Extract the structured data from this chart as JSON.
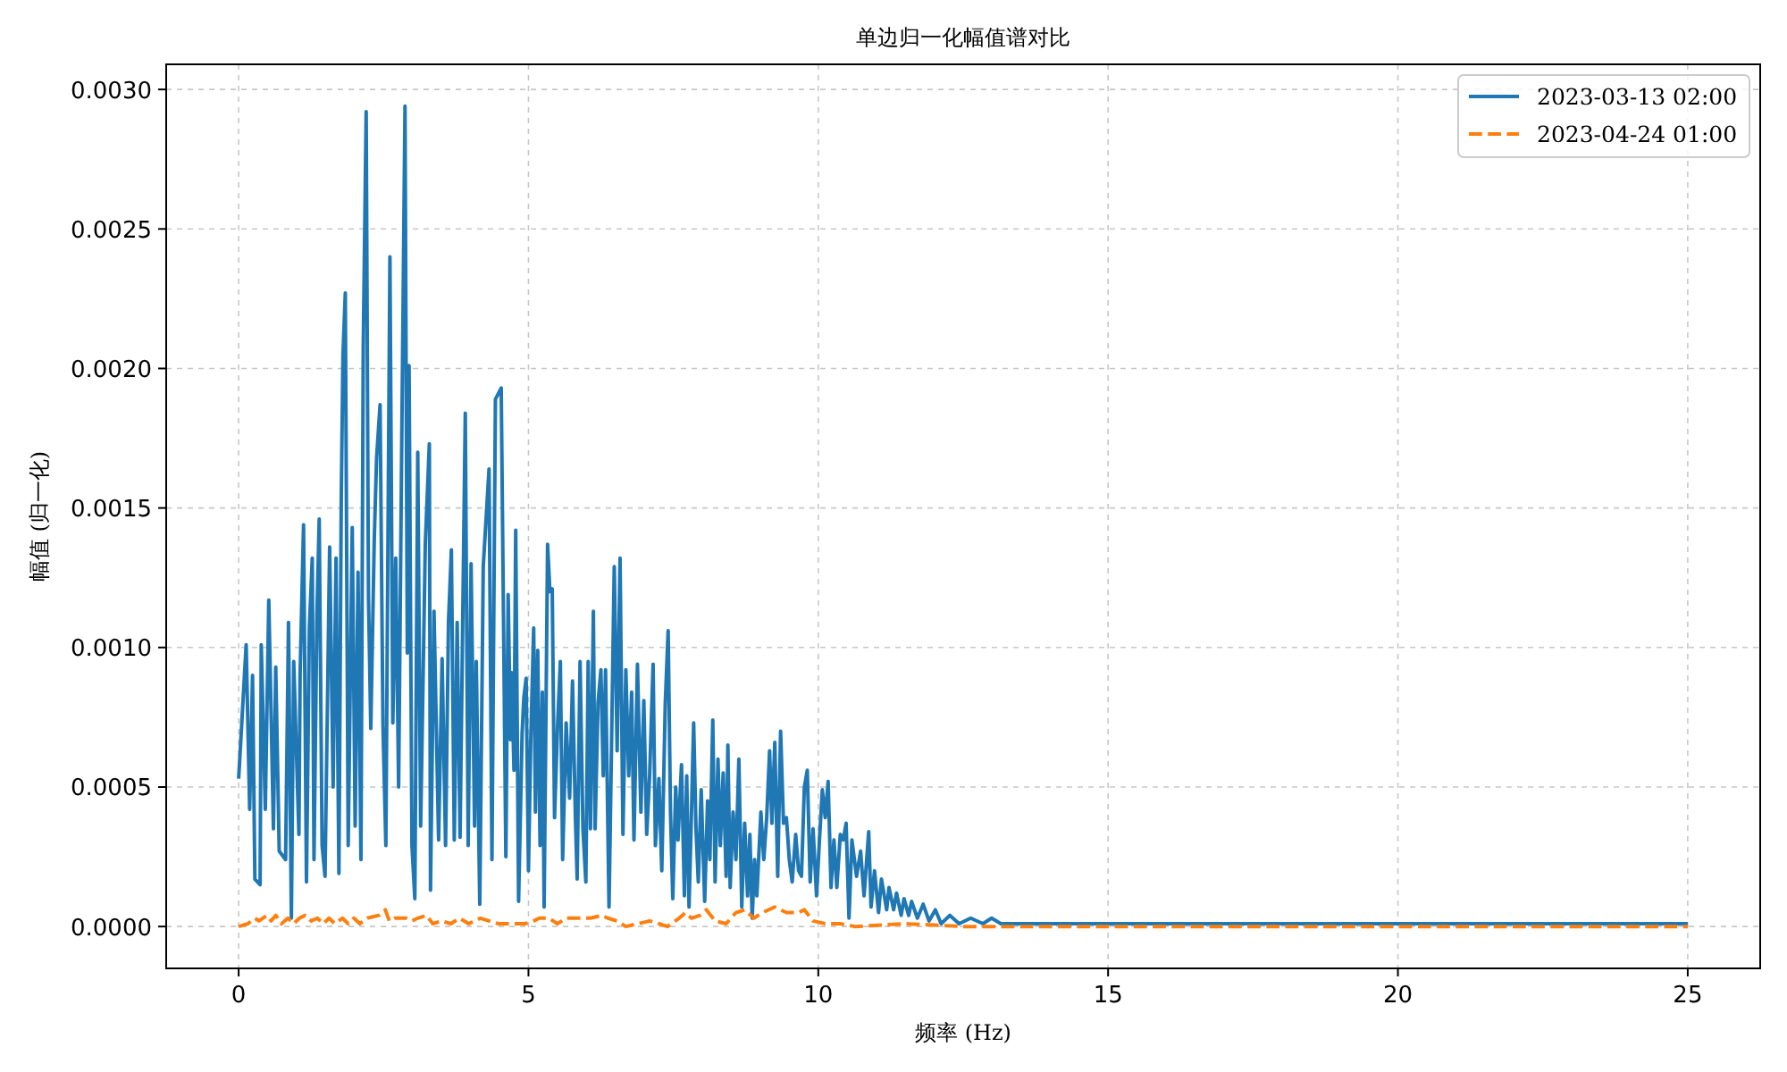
{
  "chart_data": {
    "type": "line",
    "title": "单边归一化幅值谱对比",
    "xlabel": "频率 (Hz)",
    "ylabel": "幅值 (归一化)",
    "xlim": [
      -1.25,
      26.25
    ],
    "ylim": [
      -0.00015,
      0.00309
    ],
    "xticks": [
      0,
      5,
      10,
      15,
      20,
      25
    ],
    "yticks": [
      {
        "value": 0,
        "label": "0.0000"
      },
      {
        "value": 0.0005,
        "label": "0.0005"
      },
      {
        "value": 0.001,
        "label": "0.0010"
      },
      {
        "value": 0.0015,
        "label": "0.0015"
      },
      {
        "value": 0.002,
        "label": "0.0020"
      },
      {
        "value": 0.0025,
        "label": "0.0025"
      },
      {
        "value": 0.003,
        "label": "0.0030"
      }
    ],
    "grid": true,
    "legend": "top right",
    "series": [
      {
        "name": "2023-03-13 02:00",
        "color": "#1f77b4",
        "line_style": "solid",
        "x": [
          0,
          0.13,
          0.19,
          0.24,
          0.28,
          0.37,
          0.39,
          0.46,
          0.52,
          0.6,
          0.64,
          0.7,
          0.81,
          0.86,
          0.91,
          0.95,
          1.04,
          1.06,
          1.12,
          1.17,
          1.22,
          1.27,
          1.3,
          1.35,
          1.39,
          1.44,
          1.49,
          1.57,
          1.63,
          1.68,
          1.73,
          1.77,
          1.8,
          1.84,
          1.89,
          1.96,
          2.01,
          2.06,
          2.11,
          2.15,
          2.2,
          2.24,
          2.28,
          2.34,
          2.38,
          2.44,
          2.49,
          2.54,
          2.61,
          2.66,
          2.71,
          2.76,
          2.81,
          2.87,
          2.91,
          2.94,
          2.99,
          3.04,
          3.09,
          3.14,
          3.22,
          3.29,
          3.31,
          3.37,
          3.45,
          3.51,
          3.57,
          3.62,
          3.67,
          3.72,
          3.77,
          3.82,
          3.91,
          3.96,
          4.01,
          4.07,
          4.1,
          4.16,
          4.22,
          4.32,
          4.37,
          4.43,
          4.53,
          4.61,
          4.65,
          4.69,
          4.71,
          4.75,
          4.78,
          4.83,
          4.89,
          4.92,
          4.96,
          5.0,
          5.04,
          5.09,
          5.12,
          5.16,
          5.2,
          5.24,
          5.27,
          5.33,
          5.37,
          5.41,
          5.45,
          5.5,
          5.55,
          5.59,
          5.65,
          5.71,
          5.76,
          5.81,
          5.84,
          5.89,
          5.94,
          5.99,
          6.03,
          6.07,
          6.12,
          6.15,
          6.2,
          6.25,
          6.29,
          6.33,
          6.39,
          6.44,
          6.48,
          6.53,
          6.58,
          6.63,
          6.68,
          6.73,
          6.78,
          6.82,
          6.88,
          6.94,
          6.99,
          7.04,
          7.09,
          7.15,
          7.19,
          7.25,
          7.3,
          7.36,
          7.41,
          7.45,
          7.49,
          7.54,
          7.58,
          7.64,
          7.69,
          7.73,
          7.77,
          7.81,
          7.85,
          7.89,
          7.93,
          7.98,
          8.04,
          8.09,
          8.13,
          8.18,
          8.22,
          8.27,
          8.31,
          8.36,
          8.41,
          8.44,
          8.48,
          8.53,
          8.58,
          8.63,
          8.68,
          8.73,
          8.78,
          8.82,
          8.86,
          8.9,
          8.94,
          9.01,
          9.06,
          9.11,
          9.16,
          9.2,
          9.25,
          9.3,
          9.35,
          9.4,
          9.45,
          9.5,
          9.55,
          9.61,
          9.66,
          9.71,
          9.76,
          9.81,
          9.86,
          9.91,
          9.97,
          10.02,
          10.07,
          10.12,
          10.17,
          10.22,
          10.27,
          10.32,
          10.38,
          10.43,
          10.48,
          10.53,
          10.58,
          10.66,
          10.73,
          10.79,
          10.87,
          10.91,
          10.97,
          11.04,
          11.09,
          11.18,
          11.22,
          11.3,
          11.35,
          11.43,
          11.48,
          11.56,
          11.61,
          11.71,
          11.81,
          11.91,
          12.02,
          12.12,
          12.27,
          12.43,
          12.63,
          12.84,
          12.99,
          13.15,
          13.5,
          15,
          20,
          25
        ],
        "values": [
          0.00053,
          0.00101,
          0.00042,
          0.0009,
          0.00017,
          0.00015,
          0.00101,
          0.00042,
          0.00117,
          0.00035,
          0.00093,
          0.00027,
          0.00024,
          0.00109,
          3e-05,
          0.00095,
          0.00033,
          0.0009,
          0.00144,
          0.00016,
          0.00107,
          0.00132,
          0.00024,
          0.00111,
          0.00146,
          0.00029,
          0.00018,
          0.00136,
          0.0005,
          0.00132,
          0.00019,
          0.00153,
          0.00205,
          0.00227,
          0.00029,
          0.00143,
          0.00036,
          0.00127,
          0.00024,
          0.00208,
          0.00292,
          0.00118,
          0.00071,
          0.00139,
          0.00168,
          0.00187,
          0.00072,
          0.00029,
          0.0024,
          0.00073,
          0.00132,
          0.0005,
          0.00165,
          0.00294,
          0.00098,
          0.00201,
          0.00029,
          0.0001,
          0.0017,
          0.00036,
          0.00137,
          0.00173,
          0.00013,
          0.00113,
          0.00031,
          0.00096,
          0.00029,
          0.00109,
          0.00135,
          0.00031,
          0.00109,
          0.00032,
          0.00184,
          0.00029,
          0.0013,
          0.00036,
          0.00095,
          8e-05,
          0.00129,
          0.00164,
          0.00024,
          0.00189,
          0.00193,
          0.00025,
          0.00119,
          0.00067,
          0.00091,
          0.00056,
          0.00142,
          9e-05,
          0.00069,
          0.00082,
          0.00089,
          0.0002,
          0.00067,
          0.00107,
          0.00041,
          0.00099,
          0.00029,
          0.00084,
          7e-05,
          0.00137,
          0.0012,
          0.00121,
          0.00039,
          0.00071,
          0.00095,
          0.00024,
          0.00073,
          0.00046,
          0.00088,
          0.00039,
          0.00017,
          0.00095,
          0.00035,
          0.00016,
          0.00095,
          0.00035,
          0.00113,
          0.00035,
          0.0008,
          0.00092,
          0.00054,
          0.00092,
          7e-05,
          0.00075,
          0.00129,
          0.00063,
          0.00132,
          0.00033,
          0.00092,
          0.00054,
          0.00084,
          0.00031,
          0.00094,
          0.00041,
          0.00081,
          0.00033,
          0.00054,
          0.00094,
          0.00029,
          0.00053,
          0.0002,
          0.0008,
          0.00106,
          0.00041,
          0.0001,
          0.0005,
          0.00031,
          0.00058,
          0.00011,
          0.00054,
          7e-05,
          0.00039,
          0.00073,
          0.00035,
          0.00016,
          0.00049,
          9e-05,
          0.00045,
          0.00024,
          0.00074,
          0.00016,
          0.0006,
          0.00029,
          0.00055,
          0.00018,
          0.00065,
          0.00014,
          0.00041,
          0.00024,
          0.0006,
          7e-05,
          0.00037,
          0.00011,
          0.00033,
          3e-05,
          0.00024,
          0.00011,
          0.00041,
          0.00024,
          0.00039,
          0.00063,
          0.00037,
          0.00066,
          0.00018,
          0.0007,
          0.00037,
          0.00039,
          0.00024,
          0.00016,
          0.00033,
          0.0002,
          0.00018,
          0.0005,
          0.00056,
          0.00016,
          0.00035,
          0.00011,
          0.00031,
          0.00049,
          0.00039,
          0.00052,
          0.00014,
          0.00031,
          0.00014,
          0.00033,
          0.00031,
          0.00037,
          3e-05,
          0.00031,
          0.00018,
          0.00027,
          0.00011,
          0.00034,
          7e-05,
          0.0002,
          5e-05,
          0.00017,
          6e-05,
          0.00014,
          6e-05,
          0.00012,
          4e-05,
          0.0001,
          4e-05,
          9e-05,
          3e-05,
          8e-05,
          2e-05,
          6e-05,
          1e-05,
          4e-05,
          1e-05,
          3e-05,
          1e-05,
          3e-05,
          1e-05,
          1e-05,
          1e-05,
          1e-05,
          1e-05
        ]
      },
      {
        "name": "2023-04-24 01:00",
        "color": "#ff7f0e",
        "line_style": "dashed",
        "x": [
          0,
          0.16,
          0.28,
          0.35,
          0.49,
          0.56,
          0.64,
          0.74,
          0.85,
          0.95,
          1.05,
          1.15,
          1.25,
          1.36,
          1.46,
          1.56,
          1.66,
          1.79,
          1.89,
          1.99,
          2.09,
          2.22,
          2.42,
          2.53,
          2.6,
          2.69,
          2.89,
          2.99,
          3.09,
          3.24,
          3.35,
          3.5,
          3.66,
          3.81,
          3.97,
          4.17,
          4.32,
          4.48,
          4.53,
          4.73,
          4.94,
          5.09,
          5.19,
          5.35,
          5.5,
          5.65,
          5.86,
          6.07,
          6.27,
          6.37,
          6.53,
          6.68,
          6.89,
          7.09,
          7.25,
          7.4,
          7.6,
          7.71,
          7.81,
          7.96,
          8.07,
          8.22,
          8.41,
          8.58,
          8.73,
          8.89,
          9.04,
          9.25,
          9.45,
          9.66,
          9.76,
          9.91,
          10.12,
          10.38,
          10.63,
          11.5,
          12.5,
          25
        ],
        "values": [
          0,
          1e-05,
          3e-05,
          2e-05,
          4e-05,
          2e-05,
          4e-05,
          1e-05,
          3e-05,
          1e-05,
          3e-05,
          4e-05,
          2e-05,
          3e-05,
          1e-05,
          3e-05,
          1e-05,
          3e-05,
          1e-05,
          3e-05,
          1e-05,
          3e-05,
          4e-05,
          6e-05,
          2e-05,
          3e-05,
          3e-05,
          2e-05,
          3e-05,
          4e-05,
          1e-05,
          2e-05,
          1e-05,
          3e-05,
          1e-05,
          3e-05,
          2e-05,
          1e-05,
          1e-05,
          1e-05,
          1e-05,
          2e-05,
          3e-05,
          3e-05,
          1e-05,
          3e-05,
          3e-05,
          3e-05,
          4e-05,
          3e-05,
          2e-05,
          0,
          1e-05,
          2e-05,
          1e-05,
          0,
          3e-05,
          5e-05,
          3e-05,
          4e-05,
          6e-05,
          2e-05,
          1e-05,
          5e-05,
          6e-05,
          3e-05,
          5e-05,
          7e-05,
          5e-05,
          5e-05,
          6e-05,
          2e-05,
          1e-05,
          1e-05,
          0,
          1e-05,
          0,
          0
        ]
      }
    ]
  }
}
